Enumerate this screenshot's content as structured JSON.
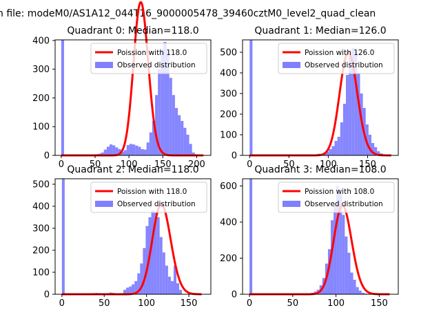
{
  "suptitle": "n file: modeM0/AS1A12_044T16_9000005478_39460cztM0_level2_quad_clean",
  "colors": {
    "hist": "#8080ff",
    "curve": "#ff0000",
    "axes": "#000000"
  },
  "chart_data": [
    {
      "type": "bar",
      "title": "Quadrant 0: Median=118.0",
      "xlim": [
        -9,
        221
      ],
      "ylim": [
        0,
        402
      ],
      "xticks": [
        0,
        50,
        100,
        150,
        200
      ],
      "yticks": [
        0,
        100,
        200,
        300,
        400
      ],
      "legend_position": "top-right",
      "series": [
        {
          "name": "Poission with 118.0",
          "kind": "line",
          "mean": 118.0,
          "x_range": [
            0,
            210
          ]
        },
        {
          "name": "Observed distribution",
          "kind": "histogram",
          "x_start": 0,
          "bin_width": 4.2,
          "values": [
            402,
            0,
            0,
            0,
            0,
            0,
            0,
            0,
            0,
            0,
            2,
            2,
            4,
            6,
            10,
            20,
            30,
            38,
            35,
            28,
            22,
            12,
            18,
            36,
            40,
            38,
            34,
            30,
            22,
            20,
            45,
            80,
            120,
            210,
            300,
            370,
            395,
            360,
            270,
            210,
            165,
            140,
            120,
            96,
            72,
            40,
            10,
            4,
            2,
            1
          ]
        }
      ]
    },
    {
      "type": "bar",
      "title": "Quadrant 1: Median=126.0",
      "xlim": [
        -9,
        189
      ],
      "ylim": [
        0,
        560
      ],
      "xticks": [
        0,
        50,
        100,
        150
      ],
      "yticks": [
        0,
        100,
        200,
        300,
        400,
        500
      ],
      "legend_position": "top-right",
      "series": [
        {
          "name": "Poission with 126.0",
          "kind": "line",
          "mean": 126.0,
          "x_range": [
            0,
            180
          ]
        },
        {
          "name": "Observed distribution",
          "kind": "histogram",
          "x_start": 0,
          "bin_width": 3.6,
          "values": [
            560,
            0,
            0,
            0,
            0,
            0,
            0,
            0,
            0,
            0,
            0,
            0,
            0,
            0,
            0,
            0,
            0,
            0,
            0,
            0,
            0,
            0,
            5,
            2,
            8,
            3,
            10,
            18,
            30,
            45,
            70,
            90,
            160,
            250,
            390,
            480,
            520,
            500,
            400,
            300,
            230,
            150,
            100,
            60,
            40,
            20,
            10,
            4,
            2,
            1
          ]
        }
      ]
    },
    {
      "type": "bar",
      "title": "Quadrant 2: Median=118.0",
      "xlim": [
        -8,
        176
      ],
      "ylim": [
        0,
        525
      ],
      "xticks": [
        0,
        50,
        100,
        150
      ],
      "yticks": [
        0,
        100,
        200,
        300,
        400,
        500
      ],
      "legend_position": "top-right",
      "series": [
        {
          "name": "Poission with 118.0",
          "kind": "line",
          "mean": 118.0,
          "x_range": [
            0,
            165
          ]
        },
        {
          "name": "Observed distribution",
          "kind": "histogram",
          "x_start": 0,
          "bin_width": 3.3,
          "values": [
            525,
            0,
            0,
            0,
            0,
            0,
            0,
            0,
            0,
            0,
            3,
            5,
            6,
            5,
            4,
            3,
            5,
            8,
            6,
            4,
            3,
            5,
            20,
            30,
            35,
            45,
            60,
            95,
            140,
            210,
            310,
            350,
            380,
            375,
            350,
            260,
            190,
            130,
            80,
            60,
            130,
            50,
            20
          ]
        }
      ]
    },
    {
      "type": "bar",
      "title": "Quadrant 3: Median=108.0",
      "xlim": [
        -8,
        172
      ],
      "ylim": [
        0,
        640
      ],
      "xticks": [
        0,
        50,
        100,
        150
      ],
      "yticks": [
        0,
        200,
        400,
        600
      ],
      "legend_position": "top-right",
      "series": [
        {
          "name": "Poission with 108.0",
          "kind": "line",
          "mean": 108.0,
          "x_range": [
            0,
            162
          ]
        },
        {
          "name": "Observed distribution",
          "kind": "histogram",
          "x_start": 0,
          "bin_width": 3.24,
          "values": [
            640,
            0,
            0,
            0,
            0,
            0,
            0,
            0,
            0,
            0,
            0,
            0,
            0,
            0,
            0,
            0,
            0,
            0,
            0,
            0,
            2,
            4,
            8,
            15,
            25,
            50,
            90,
            170,
            250,
            410,
            500,
            600,
            560,
            440,
            320,
            230,
            120,
            80,
            40,
            20,
            8,
            4,
            2,
            1,
            0,
            0,
            0,
            0,
            0,
            0
          ]
        }
      ]
    }
  ]
}
